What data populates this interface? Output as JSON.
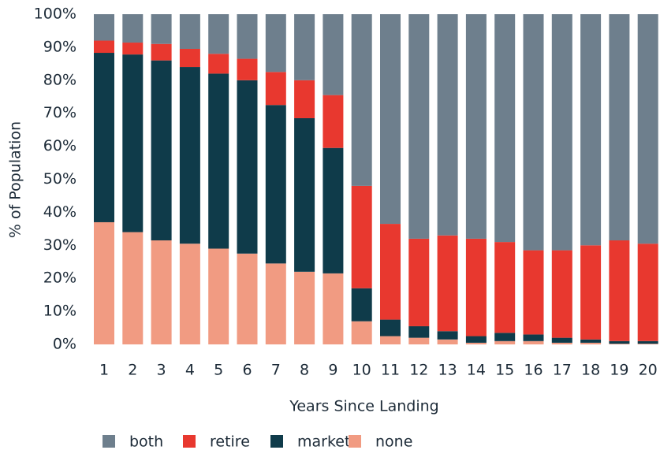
{
  "chart_data": {
    "type": "stacked-bar",
    "x_label": "Years Since Landing",
    "y_label": "% of Population",
    "categories": [
      "1",
      "2",
      "3",
      "4",
      "5",
      "6",
      "7",
      "8",
      "9",
      "10",
      "11",
      "12",
      "13",
      "14",
      "15",
      "16",
      "17",
      "18",
      "19",
      "20"
    ],
    "series": [
      {
        "name": "both",
        "color": "#6e7f8d",
        "values": [
          8,
          8.6,
          9,
          10.5,
          12,
          13.5,
          17.5,
          20,
          24.5,
          52,
          63.5,
          68,
          67,
          68,
          69,
          71.5,
          71.5,
          70,
          68.5,
          69.5
        ]
      },
      {
        "name": "retire",
        "color": "#e8382f",
        "values": [
          3.7,
          3.6,
          5,
          5.5,
          6,
          6.5,
          10,
          11.5,
          16,
          31,
          29,
          26.5,
          29,
          29.5,
          27.5,
          25.5,
          26.5,
          28.5,
          30.5,
          29.5
        ]
      },
      {
        "name": "market",
        "color": "#0f3b4a",
        "values": [
          51.3,
          53.8,
          54.5,
          53.5,
          53,
          52.5,
          48,
          46.5,
          38,
          10,
          5,
          3.5,
          2.5,
          2,
          2.5,
          2,
          1.5,
          1,
          0.8,
          0.8
        ]
      },
      {
        "name": "none",
        "color": "#f19b82",
        "values": [
          37,
          34,
          31.5,
          30.5,
          29,
          27.5,
          24.5,
          22,
          21.5,
          7,
          2.5,
          2,
          1.5,
          0.5,
          1,
          1,
          0.5,
          0.5,
          0.2,
          0.2
        ]
      }
    ],
    "ylim": [
      0,
      100
    ],
    "yticks": [
      {
        "value": 0,
        "label": "0%"
      },
      {
        "value": 10,
        "label": "10%"
      },
      {
        "value": 20,
        "label": "20%"
      },
      {
        "value": 30,
        "label": "30%"
      },
      {
        "value": 40,
        "label": "40%"
      },
      {
        "value": 50,
        "label": "50%"
      },
      {
        "value": 60,
        "label": "60%"
      },
      {
        "value": 70,
        "label": "70%"
      },
      {
        "value": 80,
        "label": "80%"
      },
      {
        "value": 90,
        "label": "90%"
      },
      {
        "value": 100,
        "label": "100%"
      }
    ],
    "grid": false,
    "legend": "bottom"
  }
}
